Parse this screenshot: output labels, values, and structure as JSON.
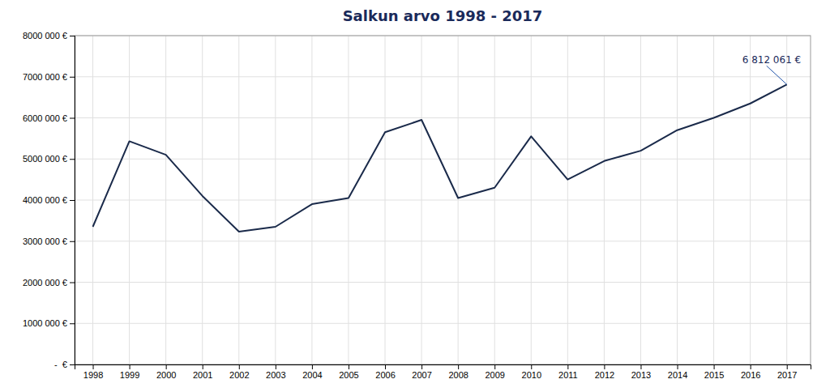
{
  "chart_data": {
    "type": "line",
    "title": "Salkun arvo 1998 - 2017",
    "x": [
      1998,
      1999,
      2000,
      2001,
      2002,
      2003,
      2004,
      2005,
      2006,
      2007,
      2008,
      2009,
      2010,
      2011,
      2012,
      2013,
      2014,
      2015,
      2016,
      2017
    ],
    "values": [
      3350000,
      5430000,
      5100000,
      4100000,
      3230000,
      3350000,
      3900000,
      4050000,
      5650000,
      5950000,
      4050000,
      4300000,
      5550000,
      4500000,
      4950000,
      5200000,
      5700000,
      6000000,
      6350000,
      6812061
    ],
    "color": "#1a2a4a",
    "xlim": [
      1997.5,
      2017.65
    ],
    "xticks": [
      1998,
      1999,
      2000,
      2001,
      2002,
      2003,
      2004,
      2005,
      2006,
      2007,
      2008,
      2009,
      2010,
      2011,
      2012,
      2013,
      2014,
      2015,
      2016,
      2017
    ],
    "ylim": [
      0,
      8000000
    ],
    "yticks": [
      {
        "value": 0,
        "label": "-  €"
      },
      {
        "value": 1000000,
        "label": "1000 000 €"
      },
      {
        "value": 2000000,
        "label": "2000 000 €"
      },
      {
        "value": 3000000,
        "label": "3000 000 €"
      },
      {
        "value": 4000000,
        "label": "4000 000 €"
      },
      {
        "value": 5000000,
        "label": "5000 000 €"
      },
      {
        "value": 6000000,
        "label": "6000 000 €"
      },
      {
        "value": 7000000,
        "label": "7000 000 €"
      },
      {
        "value": 8000000,
        "label": "8000 000 €"
      }
    ],
    "grid": true,
    "annotations": [
      {
        "text": "6 812 061 €",
        "x": 2017,
        "y": 6812061
      }
    ]
  }
}
